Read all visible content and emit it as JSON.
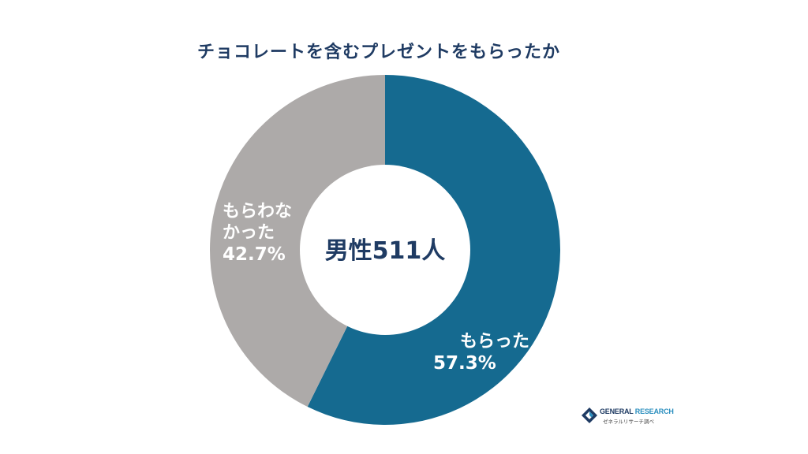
{
  "title": "チョコレートを含むプレゼントをもらったか",
  "center_label": "男性511人",
  "chart_data": {
    "type": "pie",
    "title": "チョコレートを含むプレゼントをもらったか",
    "categories": [
      "もらった",
      "もらわなかった"
    ],
    "values": [
      57.3,
      42.7
    ],
    "value_labels": [
      "57.3%",
      "42.7%"
    ],
    "colors": [
      "#156a90",
      "#adaaa9"
    ],
    "donut": true,
    "center_text": "男性511人",
    "slice_label_lines": [
      [
        "もらった"
      ],
      [
        "もらわな",
        "かった"
      ]
    ]
  },
  "logo": {
    "name_part1": "GENERAL",
    "name_part2": "RESEARCH",
    "subtitle": "ゼネラルリサーチ調べ",
    "colors": [
      "#1f3b63",
      "#2b8fbf"
    ]
  }
}
